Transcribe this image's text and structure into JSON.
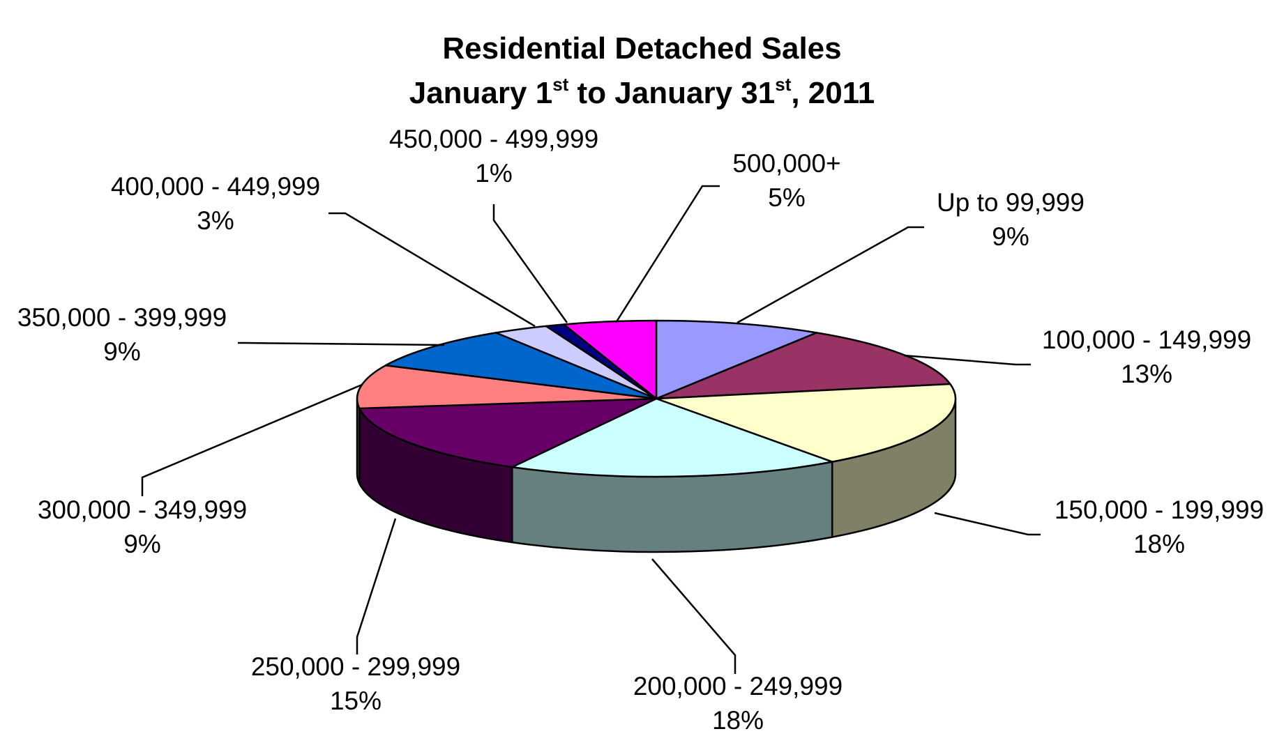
{
  "chart_data": {
    "type": "pie",
    "style": "3d-exploded-labels",
    "title": {
      "line1": "Residential Detached Sales",
      "line2_part1": "January 1",
      "line2_sup1": "st",
      "line2_part2": " to January 31",
      "line2_sup2": "st",
      "line2_part3": ", 2011"
    },
    "slices": [
      {
        "label": "Up to 99,999",
        "pct_label": "9%",
        "value": 9,
        "color": "#9999ff"
      },
      {
        "label": "100,000 - 149,999",
        "pct_label": "13%",
        "value": 13,
        "color": "#993366"
      },
      {
        "label": "150,000 - 199,999",
        "pct_label": "18%",
        "value": 18,
        "color": "#ffffcc"
      },
      {
        "label": "200,000 - 249,999",
        "pct_label": "18%",
        "value": 18,
        "color": "#ccffff"
      },
      {
        "label": "250,000 - 299,999",
        "pct_label": "15%",
        "value": 15,
        "color": "#660066"
      },
      {
        "label": "300,000 - 349,999",
        "pct_label": "9%",
        "value": 9,
        "color": "#ff8080"
      },
      {
        "label": "350,000 - 399,999",
        "pct_label": "9%",
        "value": 9,
        "color": "#0066cc"
      },
      {
        "label": "400,000 - 449,999",
        "pct_label": "3%",
        "value": 3,
        "color": "#ccccff"
      },
      {
        "label": "450,000 - 499,999",
        "pct_label": "1%",
        "value": 1,
        "color": "#000080"
      },
      {
        "label": "500,000+",
        "pct_label": "5%",
        "value": 5,
        "color": "#ff00ff"
      }
    ]
  }
}
